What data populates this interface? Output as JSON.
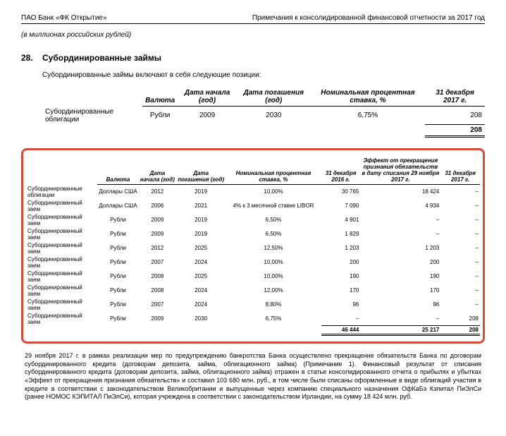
{
  "header": {
    "left": "ПАО Банк «ФК Открытие»",
    "right": "Примечания к консолидированной финансовой отчетности за 2017 год"
  },
  "subtitle": "(в миллионах российских рублей)",
  "section": {
    "num": "28.",
    "title": "Субординированные займы"
  },
  "intro": "Субординированные займы включают в себя следующие позиции:",
  "table1": {
    "headers": {
      "currency": "Валюта",
      "start": "Дата начала (год)",
      "end": "Дата погашения (год)",
      "rate": "Номинальная процентная ставка, %",
      "dec17": "31 декабря 2017 г."
    },
    "row": {
      "name": "Субординированные облигации",
      "currency": "Рубли",
      "start": "2009",
      "end": "2030",
      "rate": "6,75%",
      "val": "208"
    },
    "total": "208"
  },
  "table2": {
    "headers": {
      "currency": "Валюта",
      "start": "Дата начала (год)",
      "end": "Дата погашения (год)",
      "rate": "Номинальная процентная ставка, %",
      "dec16": "31 декабря 2016 г.",
      "effect": "Эффект от прекращения признания обязательств в дату списания 29 ноября 2017 г.",
      "dec17": "31 декабря 2017 г."
    },
    "rows": [
      {
        "name": "Субординированные облигации",
        "currency": "Доллары США",
        "start": "2012",
        "end": "2019",
        "rate": "10,00%",
        "c16": "30 765",
        "eff": "18 424",
        "c17": "–"
      },
      {
        "name": "Субординированный заем",
        "currency": "Доллары США",
        "start": "2006",
        "end": "2021",
        "rate": "4% к 3 месячной ставке LIBOR",
        "c16": "7 090",
        "eff": "4 934",
        "c17": "–"
      },
      {
        "name": "Субординированный заем",
        "currency": "Рубли",
        "start": "2009",
        "end": "2019",
        "rate": "6,50%",
        "c16": "4 901",
        "eff": "–",
        "c17": "–"
      },
      {
        "name": "Субординированный заем",
        "currency": "Рубли",
        "start": "2009",
        "end": "2019",
        "rate": "6,50%",
        "c16": "1 829",
        "eff": "–",
        "c17": "–"
      },
      {
        "name": "Субординированный заем",
        "currency": "Рубли",
        "start": "2012",
        "end": "2025",
        "rate": "12,50%",
        "c16": "1 203",
        "eff": "1 203",
        "c17": "–"
      },
      {
        "name": "Субординированный заем",
        "currency": "Рубли",
        "start": "2007",
        "end": "2024",
        "rate": "10,00%",
        "c16": "200",
        "eff": "200",
        "c17": "–"
      },
      {
        "name": "Субординированный заем",
        "currency": "Рубли",
        "start": "2008",
        "end": "2025",
        "rate": "10,00%",
        "c16": "190",
        "eff": "190",
        "c17": "–"
      },
      {
        "name": "Субординированный заем",
        "currency": "Рубли",
        "start": "2008",
        "end": "2024",
        "rate": "12,00%",
        "c16": "170",
        "eff": "170",
        "c17": "–"
      },
      {
        "name": "Субординированный заем",
        "currency": "Рубли",
        "start": "2007",
        "end": "2024",
        "rate": "8,80%",
        "c16": "96",
        "eff": "96",
        "c17": "–"
      },
      {
        "name": "Субординированный заем",
        "currency": "Рубли",
        "start": "2009",
        "end": "2030",
        "rate": "6,75%",
        "c16": "–",
        "eff": "–",
        "c17": "208"
      }
    ],
    "totals": {
      "c16": "46 444",
      "eff": "25 217",
      "c17": "208"
    }
  },
  "footnote": "29 ноября 2017 г. в рамках реализации мер по предупреждению банкротства Банка осуществлено прекращение обязательств Банка по договорам субординированного кредита (договорам депозита, займа, облигационного займа) (Примечание 1). Финансовый результат от списания субординированного кредита (договорам депозита, займа, облигационного займа) отражен в статье консолидированного отчета о прибылях и убытках «Эффект от прекращения признания обязательств» и составил 103 680 млн. руб., в том числе были списаны оформленные в виде облигаций участия в кредите в соответствии с законодательством Великобритании и выпущенные через компанию специального назначения ОфКаБэ Кэпитал ПиЭлСи (ранее НОМОС КЭПИТАЛ ПиЭлСи), которая учреждена в соответствии с законодательством Ирландии, на сумму 18 424 млн. руб."
}
